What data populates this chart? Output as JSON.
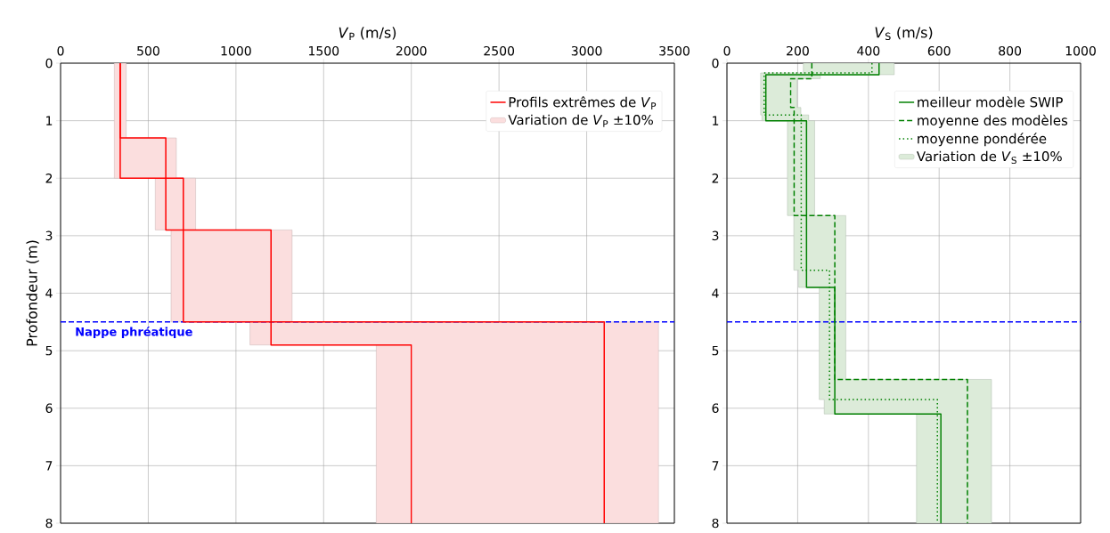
{
  "chart_data": [
    {
      "type": "line",
      "xlabel": "*V*$_{P}$ (m/s)",
      "ylabel": "Profondeur (m)",
      "xlim": [
        0,
        3500
      ],
      "xticks": [
        0,
        500,
        1000,
        1500,
        2000,
        2500,
        3000,
        3500
      ],
      "ylim": [
        8,
        0
      ],
      "yticks": [
        0,
        1,
        2,
        3,
        4,
        5,
        6,
        7,
        8
      ],
      "grid": true,
      "legend": "top right",
      "series": [
        {
          "name": "Profils extrêmes de *V*$_{P}$",
          "type": "line",
          "color": "#ff0000",
          "line_style": "solid",
          "x": [
            340,
            340,
            600,
            600,
            1200,
            1200,
            2000,
            2000
          ],
          "values": [
            0,
            1.3,
            1.3,
            2.9,
            2.9,
            4.9,
            4.9,
            8
          ]
        },
        {
          "type": "line",
          "color": "#ff0000",
          "line_style": "solid",
          "x": [
            340,
            340,
            700,
            700,
            3100,
            3100
          ],
          "values": [
            0,
            2.0,
            2.0,
            4.5,
            4.5,
            8
          ]
        },
        {
          "name": "Variation de *V*$_{P}$ ±10%",
          "type": "area",
          "color": "#fbdede",
          "x": [
            306,
            306,
            540,
            540,
            630,
            630,
            1080,
            1080,
            1800,
            1800,
            3410,
            3410,
            1320,
            1320,
            770,
            770,
            660,
            660,
            374,
            374
          ],
          "values": [
            0,
            2.0,
            2.0,
            2.9,
            2.9,
            4.5,
            4.5,
            4.9,
            4.9,
            8,
            8,
            4.5,
            4.5,
            2.9,
            2.9,
            2.0,
            2.0,
            1.3,
            1.3,
            0
          ]
        }
      ],
      "ref_lines": [
        {
          "axis": "y",
          "value": 4.5,
          "label": "Nappe phréatique",
          "color": "#0000ff",
          "line_style": "dashed"
        }
      ]
    },
    {
      "type": "line",
      "xlabel": "*V*$_{S}$ (m/s)",
      "xlim": [
        0,
        1000
      ],
      "xticks": [
        0,
        200,
        400,
        600,
        800,
        1000
      ],
      "ylim": [
        8,
        0
      ],
      "yticks": [
        0,
        1,
        2,
        3,
        4,
        5,
        6,
        7,
        8
      ],
      "grid": true,
      "legend": "top right",
      "series": [
        {
          "name": "meilleur modèle SWIP",
          "type": "line",
          "color": "#008000",
          "line_style": "solid",
          "x": [
            430,
            430,
            110,
            110,
            225,
            225,
            305,
            305,
            605,
            605
          ],
          "values": [
            0,
            0.2,
            0.2,
            1.0,
            1.0,
            3.9,
            3.9,
            6.1,
            6.1,
            8
          ]
        },
        {
          "name": "moyenne des modèles",
          "type": "line",
          "color": "#008000",
          "line_style": "dashed",
          "x": [
            240,
            240,
            180,
            180,
            190,
            190,
            305,
            305,
            680,
            680
          ],
          "values": [
            0,
            0.27,
            0.27,
            0.77,
            0.77,
            2.65,
            2.65,
            5.5,
            5.5,
            8
          ]
        },
        {
          "name": "moyenne pondérée",
          "type": "line",
          "color": "#008000",
          "line_style": "dotted",
          "x": [
            410,
            410,
            105,
            105,
            210,
            210,
            290,
            290,
            595,
            595
          ],
          "values": [
            0,
            0.17,
            0.17,
            0.9,
            0.9,
            3.6,
            3.6,
            5.85,
            5.85,
            8
          ]
        },
        {
          "name": "Variation de *V*$_{S}$ ±10%",
          "type": "area",
          "color": "#dcebd9",
          "x": [
            216,
            216,
            95,
            95,
            99,
            99,
            171,
            171,
            189,
            189,
            203,
            203,
            261,
            261,
            275,
            275,
            536,
            536,
            748,
            748,
            336,
            336,
            248,
            248,
            231,
            231,
            209,
            209,
            198,
            198,
            264,
            264,
            473,
            473
          ],
          "values": [
            0,
            0.17,
            0.17,
            0.9,
            0.9,
            1.0,
            1.0,
            2.65,
            2.65,
            3.6,
            3.6,
            3.9,
            3.9,
            5.85,
            5.85,
            6.1,
            6.1,
            8,
            8,
            5.5,
            5.5,
            2.65,
            2.65,
            1.0,
            1.0,
            0.9,
            0.9,
            0.77,
            0.77,
            0.27,
            0.27,
            0.2,
            0.2,
            0
          ]
        }
      ],
      "ref_lines": [
        {
          "axis": "y",
          "value": 4.5,
          "color": "#0000ff",
          "line_style": "dashed"
        }
      ]
    }
  ]
}
